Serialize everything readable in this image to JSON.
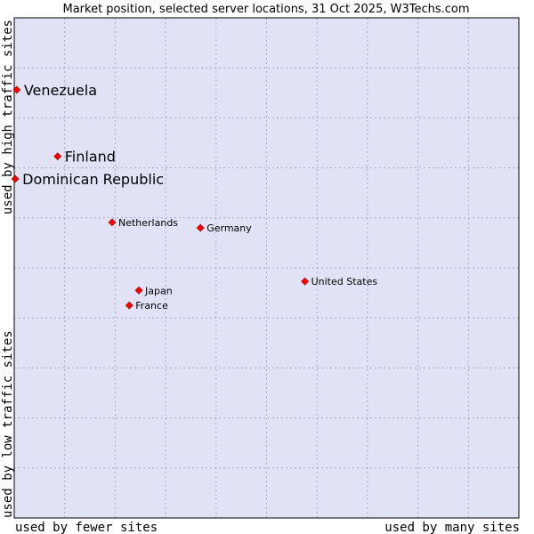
{
  "chart_data": {
    "type": "scatter",
    "title": "Market position, selected server locations, 31 Oct 2025, W3Techs.com",
    "xlabel_left": "used by fewer sites",
    "xlabel_right": "used by many sites",
    "ylabel_bottom": "used by low traffic sites",
    "ylabel_top": "used by high traffic sites",
    "xlim": [
      0,
      100
    ],
    "ylim": [
      0,
      100
    ],
    "grid": true,
    "points": [
      {
        "label": "Venezuela",
        "x": 0.5,
        "y": 85.6,
        "size": "large"
      },
      {
        "label": "Finland",
        "x": 8.6,
        "y": 72.3,
        "size": "large"
      },
      {
        "label": "Dominican Republic",
        "x": 0.2,
        "y": 67.8,
        "size": "large"
      },
      {
        "label": "Netherlands",
        "x": 19.4,
        "y": 59.1,
        "size": "small"
      },
      {
        "label": "Germany",
        "x": 36.9,
        "y": 58.0,
        "size": "small"
      },
      {
        "label": "United States",
        "x": 57.6,
        "y": 47.3,
        "size": "small"
      },
      {
        "label": "Japan",
        "x": 24.7,
        "y": 45.5,
        "size": "small"
      },
      {
        "label": "France",
        "x": 22.8,
        "y": 42.5,
        "size": "small"
      }
    ]
  },
  "colors": {
    "plot_bg": "#e2e2f6",
    "grid": "#a8a8c0",
    "point": "#ff0000",
    "border": "#000000"
  }
}
